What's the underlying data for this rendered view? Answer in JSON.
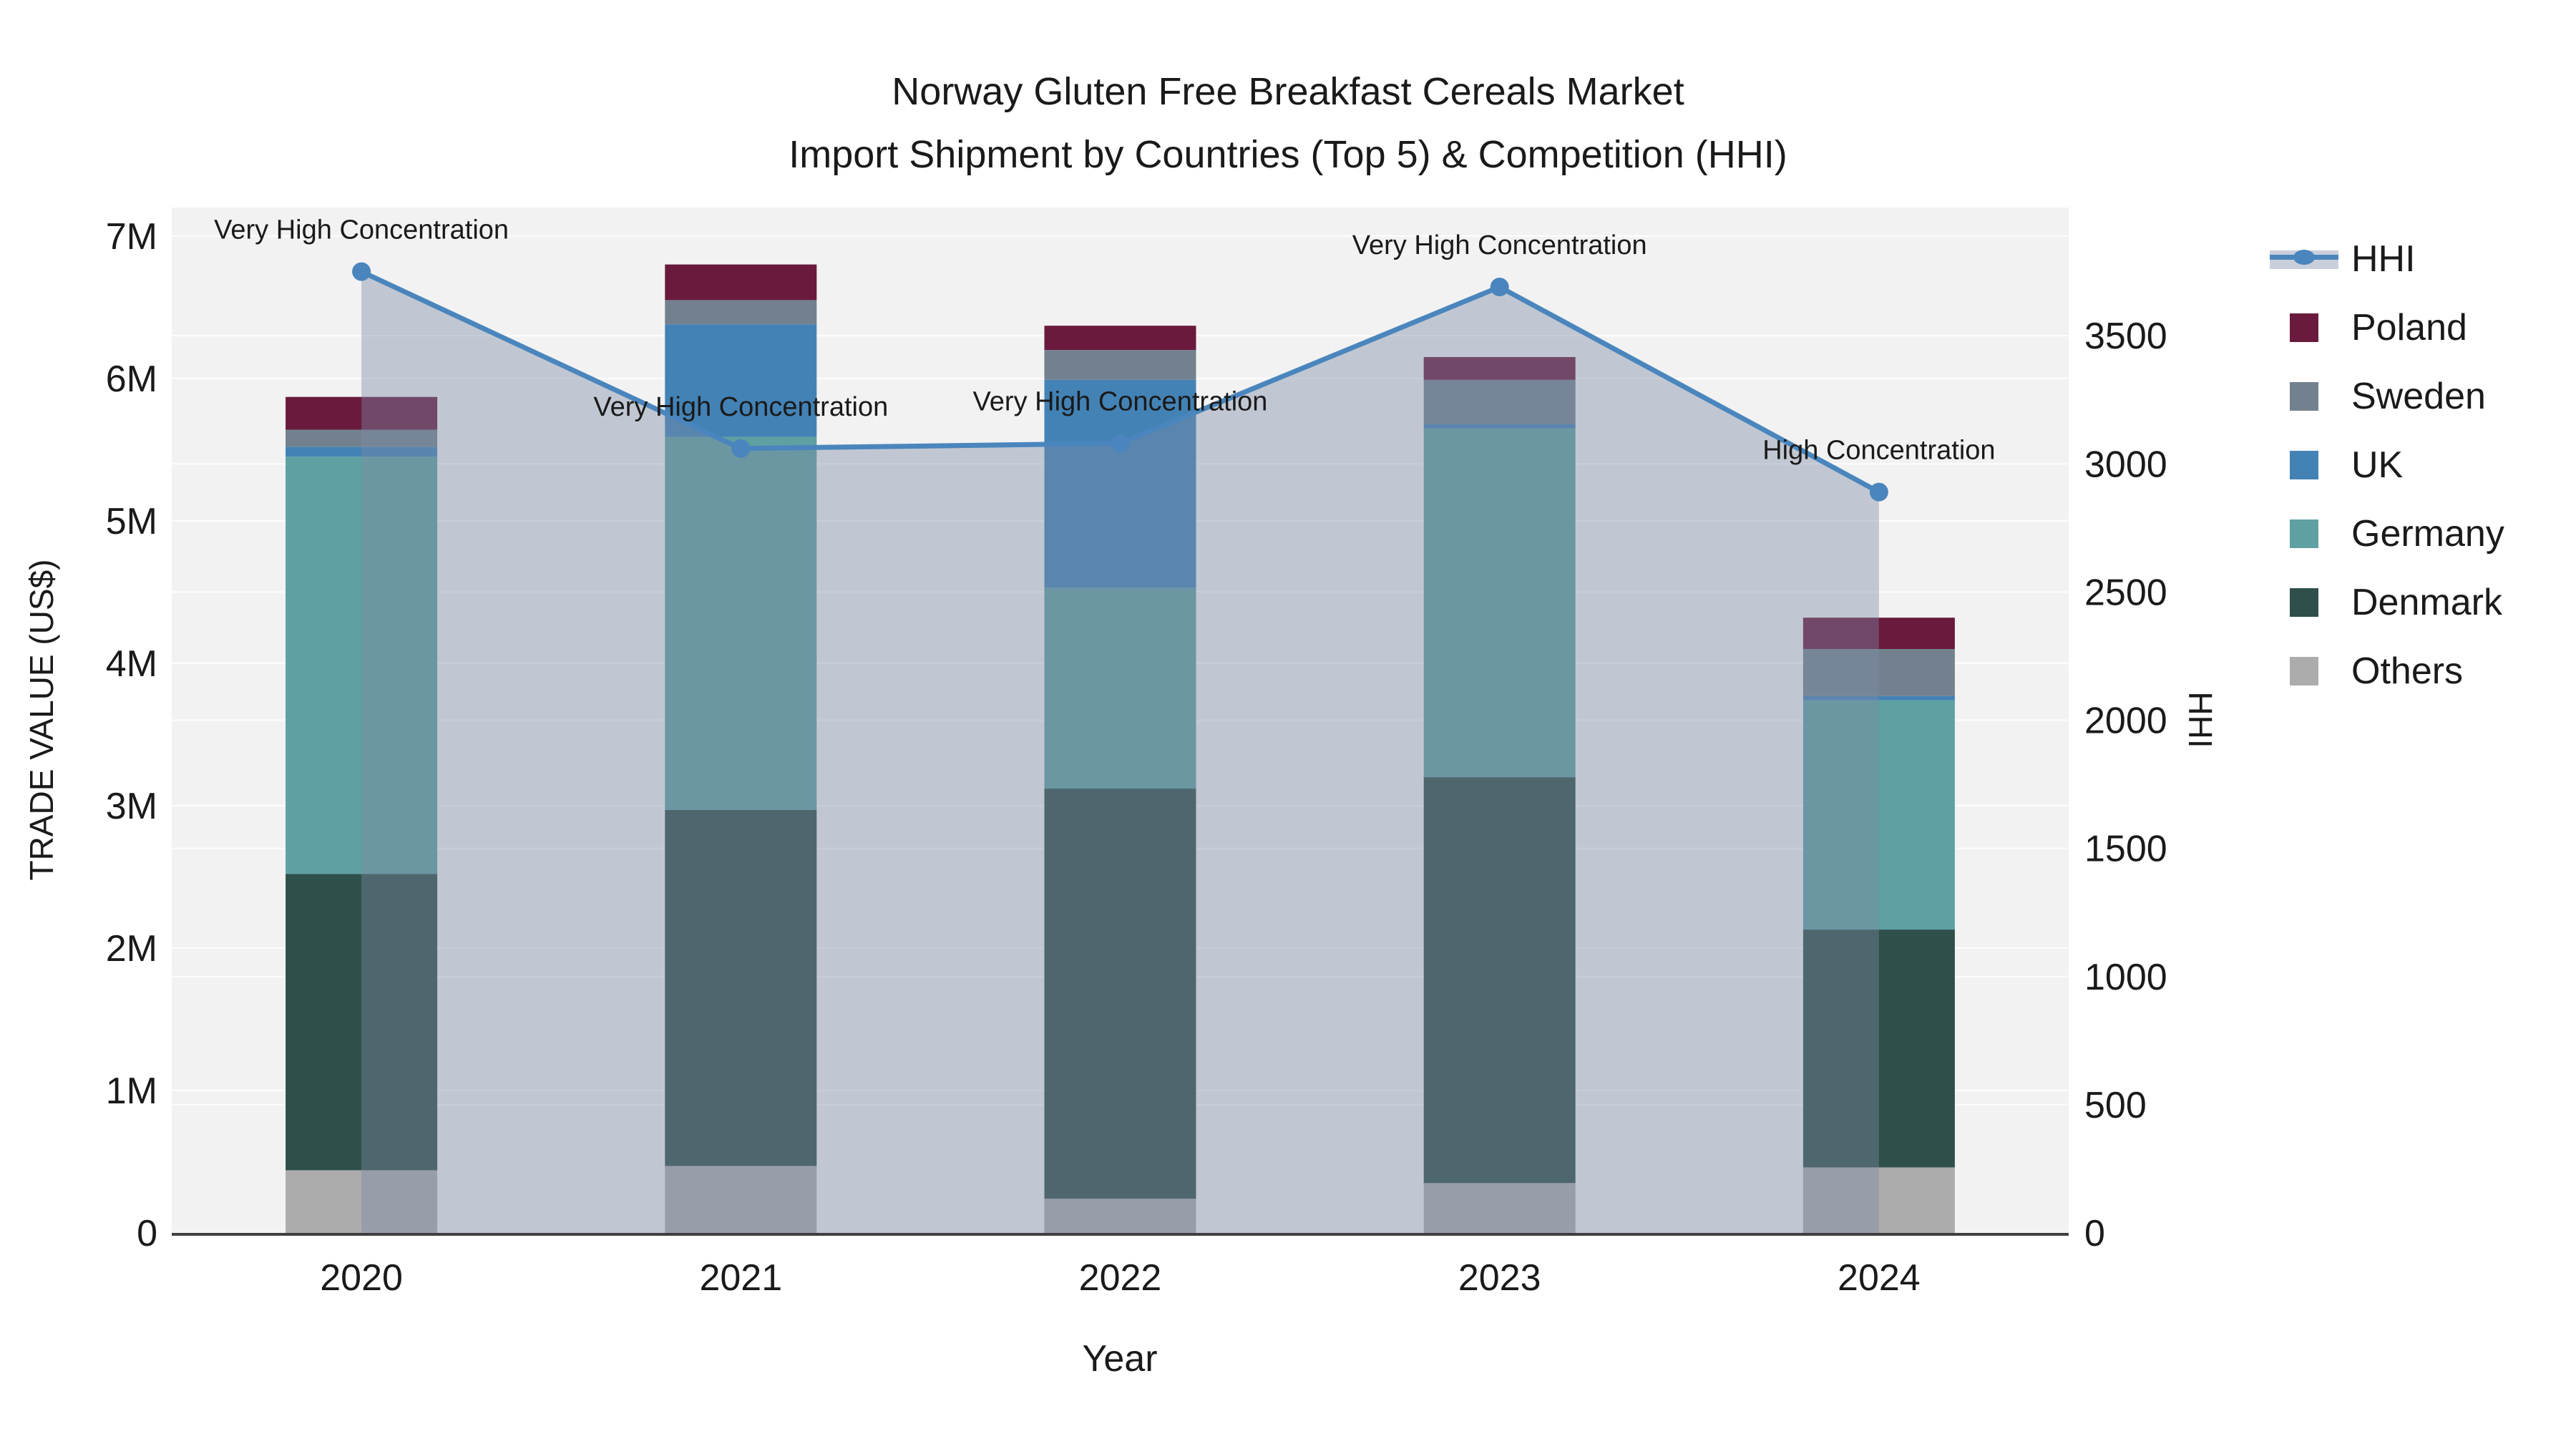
{
  "title": {
    "line1": "Norway Gluten Free Breakfast Cereals Market",
    "line2": "Import Shipment by Countries (Top 5) & Competition (HHI)"
  },
  "axes": {
    "x": {
      "title": "Year",
      "tick_labels": [
        "2020",
        "2021",
        "2022",
        "2023",
        "2024"
      ]
    },
    "y_left": {
      "title": "TRADE VALUE (US$)",
      "tick_labels": [
        "0",
        "1M",
        "2M",
        "3M",
        "4M",
        "5M",
        "6M",
        "7M"
      ],
      "tick_values_millions": [
        0,
        1,
        2,
        3,
        4,
        5,
        6,
        7
      ],
      "range_millions": [
        0,
        7.2
      ]
    },
    "y_right": {
      "title": "HHI",
      "tick_labels": [
        "0",
        "500",
        "1000",
        "1500",
        "2000",
        "2500",
        "3000",
        "3500"
      ],
      "tick_values": [
        0,
        500,
        1000,
        1500,
        2000,
        2500,
        3000,
        3500
      ],
      "range": [
        0,
        4000
      ]
    }
  },
  "legend": {
    "items": [
      {
        "label": "HHI",
        "kind": "line"
      },
      {
        "label": "Poland",
        "kind": "swatch",
        "color": "#6a1a3c"
      },
      {
        "label": "Sweden",
        "kind": "swatch",
        "color": "#73818f"
      },
      {
        "label": "UK",
        "kind": "swatch",
        "color": "#4382b5"
      },
      {
        "label": "Germany",
        "kind": "swatch",
        "color": "#5fa0a2"
      },
      {
        "label": "Denmark",
        "kind": "swatch",
        "color": "#2f4f4a"
      },
      {
        "label": "Others",
        "kind": "swatch",
        "color": "#acacac"
      }
    ]
  },
  "chart_data": {
    "type": "bar",
    "subtype": "stacked-bars-with-line-overlay",
    "title": "Norway Gluten Free Breakfast Cereals Market — Import Shipment by Countries (Top 5) & Competition (HHI)",
    "xlabel": "Year",
    "ylabel_left": "TRADE VALUE (US$)",
    "ylabel_right": "HHI",
    "categories": [
      "2020",
      "2021",
      "2022",
      "2023",
      "2024"
    ],
    "unit": "million US$",
    "stack_order_bottom_to_top": [
      "Others",
      "Denmark",
      "Germany",
      "UK",
      "Sweden",
      "Poland"
    ],
    "series": [
      {
        "name": "Others",
        "color": "#acacac",
        "values_millions": [
          0.44,
          0.47,
          0.24,
          0.35,
          0.46
        ]
      },
      {
        "name": "Denmark",
        "color": "#2f4f4a",
        "values_millions": [
          2.08,
          2.5,
          2.88,
          2.85,
          1.67
        ]
      },
      {
        "name": "Germany",
        "color": "#5fa0a2",
        "values_millions": [
          2.93,
          2.62,
          1.41,
          2.45,
          1.61
        ]
      },
      {
        "name": "UK",
        "color": "#4382b5",
        "values_millions": [
          0.07,
          0.79,
          1.46,
          0.03,
          0.03
        ]
      },
      {
        "name": "Sweden",
        "color": "#73818f",
        "values_millions": [
          0.12,
          0.17,
          0.21,
          0.31,
          0.33
        ]
      },
      {
        "name": "Poland",
        "color": "#6a1a3c",
        "values_millions": [
          0.23,
          0.25,
          0.17,
          0.16,
          0.22
        ]
      }
    ],
    "bar_totals_millions": [
      5.87,
      6.8,
      6.37,
      6.15,
      4.32
    ],
    "line_series": {
      "name": "HHI",
      "axis": "right",
      "color": "#4a86bd",
      "fill": "rgba(123,138,165,0.41)",
      "values": [
        3750,
        3060,
        3080,
        3690,
        2890
      ]
    },
    "annotations": [
      {
        "category": "2020",
        "text": "Very High Concentration"
      },
      {
        "category": "2021",
        "text": "Very High Concentration"
      },
      {
        "category": "2022",
        "text": "Very High Concentration"
      },
      {
        "category": "2023",
        "text": "Very High Concentration"
      },
      {
        "category": "2024",
        "text": "High Concentration"
      }
    ],
    "grid": true,
    "legend_position": "right",
    "plot_background": "#f2f2f2"
  },
  "colors": {
    "page_bg": "#ffffff",
    "plot_bg": "#f2f2f2",
    "gridline": "#ffffff",
    "axis_line": "#3f3f3f",
    "text": "#1a1a1a",
    "hhi_line": "#4a86bd",
    "hhi_fill": "rgba(123,138,165,0.41)"
  }
}
